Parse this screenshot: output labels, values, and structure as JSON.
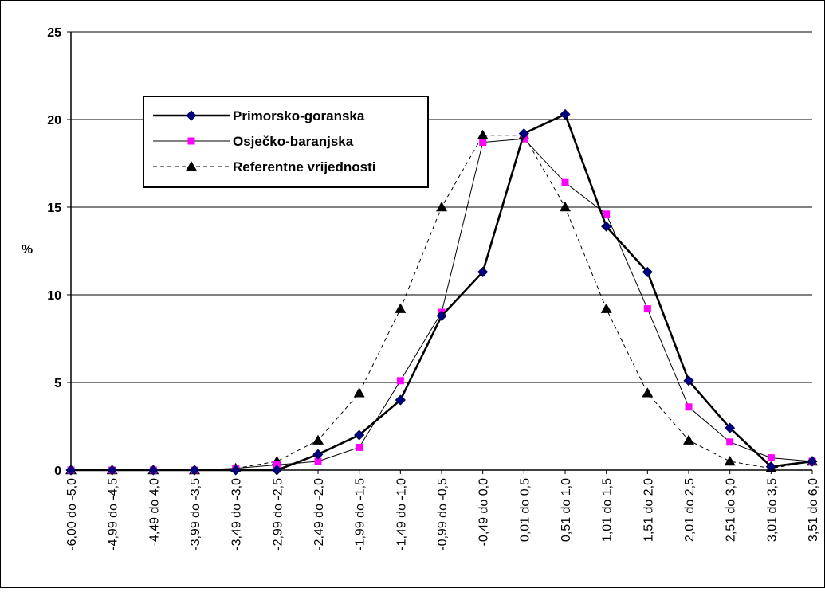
{
  "chart_data": {
    "type": "line",
    "title": "",
    "xlabel": "",
    "ylabel": "%",
    "ylim": [
      0,
      25
    ],
    "yticks": [
      0,
      5,
      10,
      15,
      20,
      25
    ],
    "grid": "horizontal",
    "legend_position": "top-left",
    "categories": [
      "-6,00 do -5,0",
      "-4,99 do -4,5",
      "-4,49 do 4,0",
      "-3,99 do -3,5",
      "-3,49 do -3,0",
      "-2,99 do -2,5",
      "-2,49 do -2,0",
      "-1,99 do -1,5",
      "-1,49 do -1,0",
      "-0,99 do -0,5",
      "-0,49 do 0,0",
      "0,01 do 0,5",
      "0,51 do 1,0",
      "1,01 do 1,5",
      "1,51 do 2,0",
      "2,01 do 2,5",
      "2,51 do 3,0",
      "3,01 do 3,5",
      "3,51 do 6,0"
    ],
    "series": [
      {
        "name": "Primorsko-goranska",
        "color": "#000080",
        "marker": "diamond",
        "line": "solid-thick",
        "values": [
          0,
          0,
          0,
          0,
          0,
          0,
          0.9,
          2.0,
          4.0,
          8.8,
          11.3,
          19.2,
          20.3,
          13.9,
          11.3,
          5.1,
          2.4,
          0.2,
          0.5
        ]
      },
      {
        "name": "Osječko-baranjska",
        "color": "#ff00ff",
        "marker": "square",
        "line": "solid-thin",
        "values": [
          0,
          0,
          0,
          0,
          0.1,
          0.3,
          0.5,
          1.3,
          5.1,
          9.0,
          18.7,
          18.9,
          16.4,
          14.6,
          9.2,
          3.6,
          1.6,
          0.7,
          0.5
        ]
      },
      {
        "name": "Referentne vrijednosti",
        "color": "#000000",
        "marker": "triangle",
        "line": "dashed",
        "values": [
          0,
          0,
          0,
          0,
          0.1,
          0.5,
          1.7,
          4.4,
          9.2,
          15.0,
          19.1,
          19.1,
          15.0,
          9.2,
          4.4,
          1.7,
          0.5,
          0.1,
          0.5
        ]
      }
    ]
  }
}
